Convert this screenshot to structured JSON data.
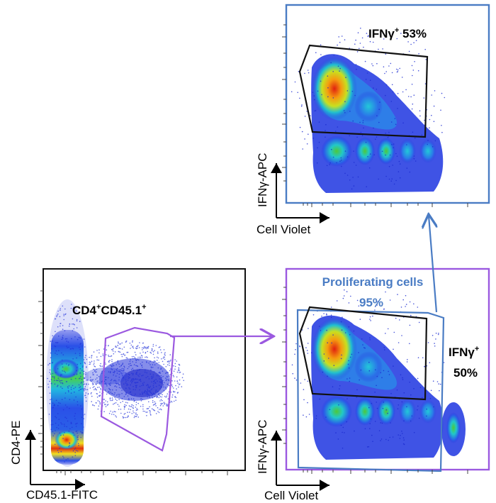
{
  "panels": {
    "left": {
      "gate_label_main": "CD4",
      "gate_label_sup1": "+",
      "gate_label_mid": "CD45.1",
      "gate_label_sup2": "+",
      "x_axis": "CD45.1-FITC",
      "y_axis": "CD4-PE"
    },
    "top_right": {
      "gate_label_main": "IFNγ",
      "gate_label_sup": "+",
      "gate_label_pct": " 53%",
      "x_axis": "Cell Violet",
      "y_axis": "IFNγ-APC"
    },
    "bottom_right": {
      "prolif_label": "Proliferating cells",
      "prolif_pct": "95%",
      "ifng_label_main": "IFNγ",
      "ifng_label_sup": "+",
      "ifng_pct": "50%",
      "x_axis": "Cell Violet",
      "y_axis": "IFNγ-APC"
    }
  },
  "colors": {
    "purple": "#9b59e0",
    "blue": "#4a7cc4",
    "frame": "#111111"
  }
}
